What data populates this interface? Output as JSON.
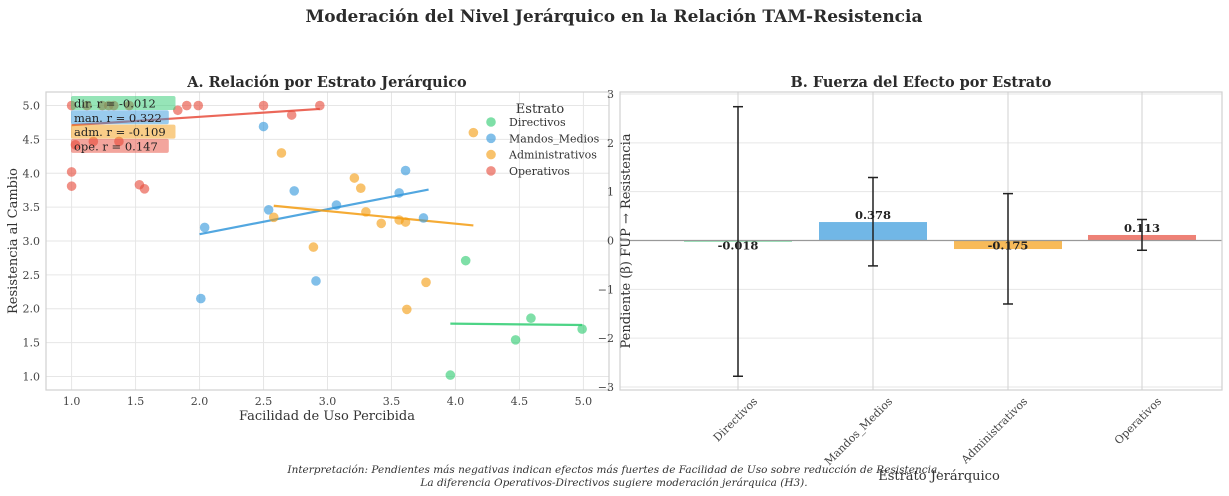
{
  "suptitle": "Moderación del Nivel Jerárquico en la Relación TAM-Resistencia",
  "caption": {
    "line1": "Interpretación: Pendientes más negativas indican efectos más fuertes de Facilidad de Uso sobre reducción de Resistencia.",
    "line2": "La diferencia Operativos-Directivos sugiere moderación jerárquica (H3)."
  },
  "chart_data": [
    {
      "type": "scatter",
      "title": "A. Relación por Estrato Jerárquico",
      "xlabel": "Facilidad de Uso Percibida",
      "ylabel": "Resistencia al Cambio",
      "xlim": [
        0.8,
        5.2
      ],
      "ylim": [
        0.8,
        5.2
      ],
      "xticks": [
        "1.0",
        "1.5",
        "2.0",
        "2.5",
        "3.0",
        "3.5",
        "4.0",
        "4.5",
        "5.0"
      ],
      "yticks": [
        "1.0",
        "1.5",
        "2.0",
        "2.5",
        "3.0",
        "3.5",
        "4.0",
        "4.5",
        "5.0"
      ],
      "grid": true,
      "legend": {
        "title": "Estrato",
        "placement": "upper-right"
      },
      "series": [
        {
          "name": "Directivos",
          "abbr": "dir.",
          "r": "-0.012",
          "color": "#2ecc71",
          "points": [
            [
              3.96,
              1.02
            ],
            [
              4.08,
              2.71
            ],
            [
              4.47,
              1.54
            ],
            [
              4.59,
              1.86
            ],
            [
              4.99,
              1.7
            ]
          ],
          "fit": [
            [
              3.96,
              1.78
            ],
            [
              4.99,
              1.76
            ]
          ]
        },
        {
          "name": "Mandos_Medios",
          "abbr": "man.",
          "r": "0.322",
          "color": "#3498db",
          "points": [
            [
              2.5,
              4.69
            ],
            [
              2.04,
              3.2
            ],
            [
              2.01,
              2.15
            ],
            [
              2.54,
              3.46
            ],
            [
              2.74,
              3.74
            ],
            [
              2.91,
              2.41
            ],
            [
              3.07,
              3.53
            ],
            [
              3.56,
              3.71
            ],
            [
              3.61,
              4.04
            ],
            [
              3.75,
              3.34
            ]
          ],
          "fit": [
            [
              2.0,
              3.1
            ],
            [
              3.79,
              3.76
            ]
          ]
        },
        {
          "name": "Administrativos",
          "abbr": "adm.",
          "r": "-0.109",
          "color": "#f39c12",
          "points": [
            [
              2.64,
              4.3
            ],
            [
              2.58,
              3.35
            ],
            [
              2.89,
              2.91
            ],
            [
              3.21,
              3.93
            ],
            [
              3.26,
              3.78
            ],
            [
              3.3,
              3.43
            ],
            [
              3.42,
              3.26
            ],
            [
              3.56,
              3.31
            ],
            [
              3.61,
              3.28
            ],
            [
              3.62,
              1.99
            ],
            [
              3.77,
              2.39
            ],
            [
              4.14,
              4.6
            ]
          ],
          "fit": [
            [
              2.58,
              3.52
            ],
            [
              4.14,
              3.23
            ]
          ]
        },
        {
          "name": "Operativos",
          "abbr": "ope.",
          "r": "0.147",
          "color": "#e74c3c",
          "points": [
            [
              1.0,
              5.0
            ],
            [
              1.0,
              4.02
            ],
            [
              1.0,
              3.81
            ],
            [
              1.03,
              4.42
            ],
            [
              1.17,
              4.47
            ],
            [
              1.37,
              4.47
            ],
            [
              1.12,
              5.0
            ],
            [
              1.24,
              5.0
            ],
            [
              1.33,
              5.0
            ],
            [
              1.29,
              5.0
            ],
            [
              1.45,
              5.0
            ],
            [
              1.53,
              3.83
            ],
            [
              1.57,
              3.77
            ],
            [
              1.83,
              4.93
            ],
            [
              1.9,
              5.0
            ],
            [
              1.99,
              5.0
            ],
            [
              2.5,
              5.0
            ],
            [
              2.72,
              4.86
            ],
            [
              2.94,
              5.0
            ]
          ],
          "fit": [
            [
              1.0,
              4.71
            ],
            [
              2.94,
              4.95
            ]
          ]
        }
      ]
    },
    {
      "type": "bar",
      "title": "B. Fuerza del Efecto por Estrato",
      "xlabel": "Estrato Jerárquico",
      "ylabel": "Pendiente (β) FUP → Resistencia",
      "ylim": [
        -3.05,
        3.0
      ],
      "yticks": [
        "3",
        "2",
        "1",
        "0",
        "−1",
        "−2",
        "−3"
      ],
      "ytick_values": [
        3,
        2,
        1,
        0,
        -1,
        -2,
        -3
      ],
      "grid": true,
      "categories": [
        "Directivos",
        "Mandos_Medios",
        "Administrativos",
        "Operativos"
      ],
      "values": [
        -0.018,
        0.378,
        -0.175,
        0.113
      ],
      "value_labels": [
        "-0.018",
        "0.378",
        "-0.175",
        "0.113"
      ],
      "error_low": [
        -2.78,
        -0.52,
        -1.3,
        -0.2
      ],
      "error_high": [
        2.74,
        1.29,
        0.96,
        0.43
      ],
      "colors": [
        "#2ecc71",
        "#3498db",
        "#f39c12",
        "#e74c3c"
      ]
    }
  ]
}
